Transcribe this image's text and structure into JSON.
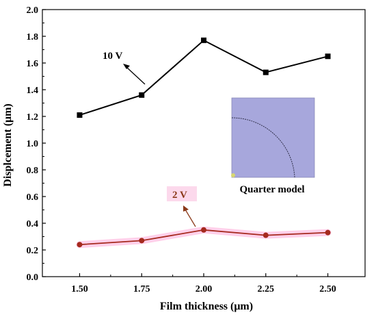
{
  "chart_data": {
    "type": "line",
    "title": "",
    "xlabel": "Film thickness (μm)",
    "ylabel": "Displcement (μm)",
    "x": [
      1.5,
      1.75,
      2.0,
      2.25,
      2.5
    ],
    "x_tick_labels": [
      "1.50",
      "1.75",
      "2.00",
      "2.25",
      "2.50"
    ],
    "xlim": [
      1.35,
      2.65
    ],
    "ylim": [
      0.0,
      2.0
    ],
    "y_ticks": [
      0.0,
      0.2,
      0.4,
      0.6,
      0.8,
      1.0,
      1.2,
      1.4,
      1.6,
      1.8,
      2.0
    ],
    "y_tick_labels": [
      "0.0",
      "0.2",
      "0.4",
      "0.6",
      "0.8",
      "1.0",
      "1.2",
      "1.4",
      "1.6",
      "1.8",
      "2.0"
    ],
    "grid": false,
    "series": [
      {
        "name": "10 V",
        "values": [
          1.21,
          1.36,
          1.77,
          1.53,
          1.65
        ],
        "color": "#000000",
        "marker": "square"
      },
      {
        "name": "2 V",
        "values": [
          0.24,
          0.27,
          0.35,
          0.31,
          0.33
        ],
        "color": "#a52a1e",
        "marker": "circle"
      }
    ],
    "inset": {
      "label": "Quarter model",
      "fill_color": "#a7a7dc"
    }
  }
}
